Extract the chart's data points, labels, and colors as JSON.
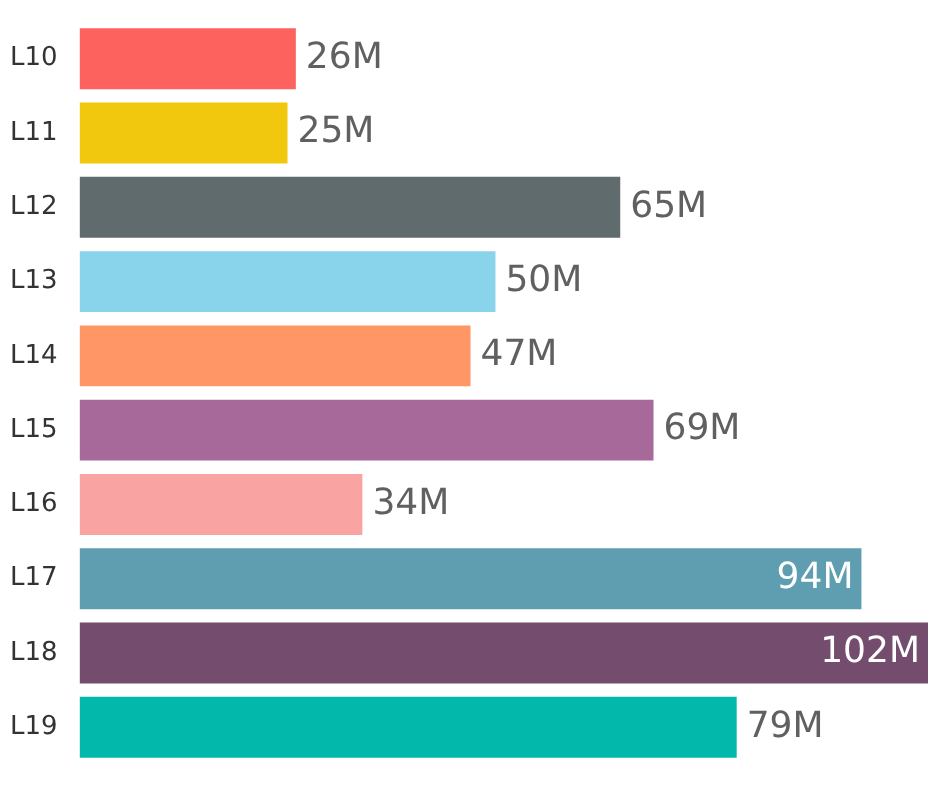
{
  "chart_data": {
    "type": "bar",
    "orientation": "horizontal",
    "categories": [
      "L10",
      "L11",
      "L12",
      "L13",
      "L14",
      "L15",
      "L16",
      "L17",
      "L18",
      "L19"
    ],
    "values": [
      26,
      25,
      65,
      50,
      47,
      69,
      34,
      94,
      102,
      79
    ],
    "colors": [
      "#fd625e",
      "#f2c80f",
      "#5f6b6d",
      "#8ad4eb",
      "#fe9666",
      "#a66999",
      "#f9a3a3",
      "#5f9eb0",
      "#744d6e",
      "#01b8aa"
    ],
    "value_labels": [
      "26M",
      "25M",
      "65M",
      "50M",
      "47M",
      "69M",
      "34M",
      "94M",
      "102M",
      "79M"
    ]
  }
}
